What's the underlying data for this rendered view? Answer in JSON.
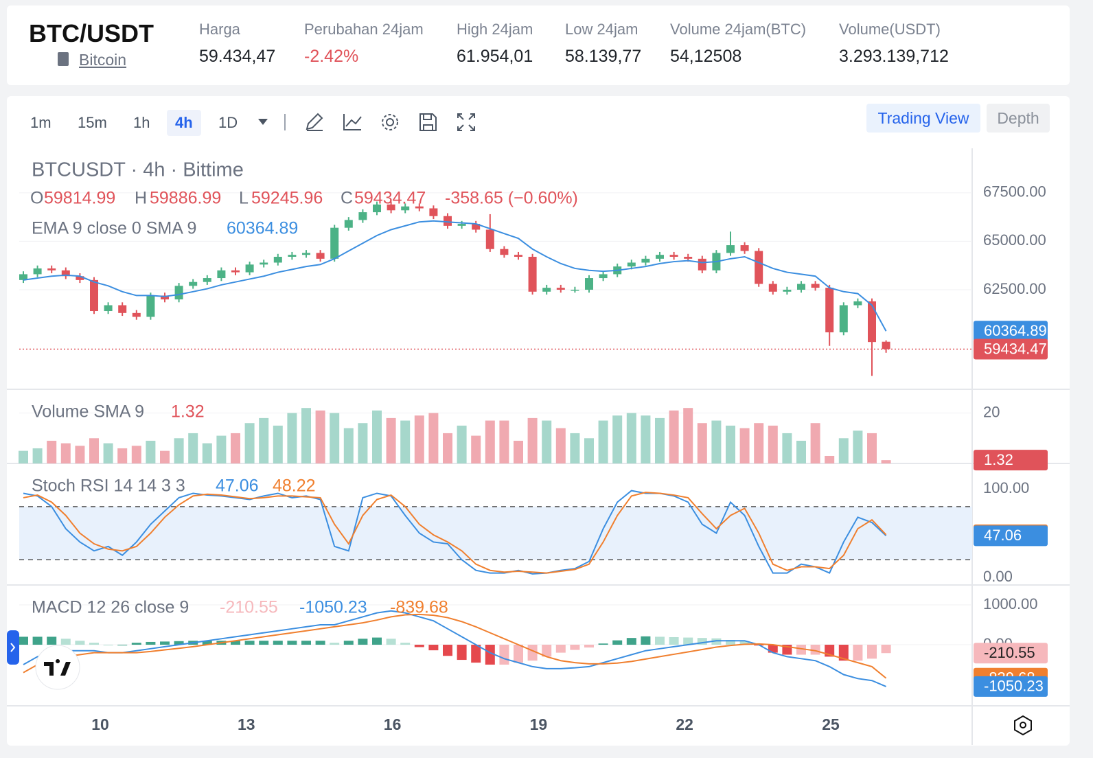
{
  "header": {
    "pair": "BTC/USDT",
    "asset_link": "Bitcoin",
    "stats": [
      {
        "label": "Harga",
        "value": "59.434,47"
      },
      {
        "label": "Perubahan 24jam",
        "value": "-2.42%"
      },
      {
        "label": "High 24jam",
        "value": "61.954,01"
      },
      {
        "label": "Low 24jam",
        "value": "58.139,77"
      },
      {
        "label": "Volume 24jam(BTC)",
        "value": "54,12508"
      },
      {
        "label": "Volume(USDT)",
        "value": "3.293.139,712"
      }
    ]
  },
  "toolbar": {
    "intervals": [
      "1m",
      "15m",
      "1h",
      "4h",
      "1D"
    ],
    "active": "4h",
    "views": [
      "Trading View",
      "Depth"
    ]
  },
  "chart_data": [
    {
      "type": "candlestick",
      "title": "BTCUSDT · 4h · Bittime",
      "ohlc_letters": [
        "O",
        "H",
        "L",
        "C"
      ],
      "change_label": "-358.65 (−0.60%)",
      "ema_label": "EMA 9 close 0 SMA 9",
      "up_color": "#4cb286",
      "down_color": "#e0535a",
      "ema_color": "#3b8ee0",
      "ylim": [
        57360,
        69800
      ],
      "yticks": [
        {
          "value": 62500,
          "label": "62500.00"
        },
        {
          "value": 65000,
          "label": "65000.00"
        },
        {
          "value": 67500,
          "label": "67500.00"
        }
      ],
      "xticks": [
        "10",
        "13",
        "16",
        "19",
        "22",
        "25"
      ],
      "open": [
        63000,
        63300,
        63600,
        63500,
        63200,
        63000,
        61400,
        61700,
        61300,
        61100,
        62200,
        62000,
        62700,
        62900,
        63100,
        63500,
        63400,
        63800,
        63900,
        64200,
        64300,
        64400,
        64100,
        65700,
        66100,
        66500,
        66900,
        66600,
        66800,
        66700,
        66300,
        65800,
        65900,
        65600,
        64600,
        64300,
        64200,
        62400,
        62600,
        62500,
        62500,
        63100,
        63300,
        63700,
        63900,
        64100,
        64300,
        64200,
        64100,
        63500,
        64400,
        64800,
        64500,
        62800,
        62400,
        62500,
        62800,
        62600,
        60300,
        61700,
        61900,
        59814.99
      ],
      "high": [
        63450,
        63750,
        63750,
        63650,
        63350,
        63150,
        61850,
        61850,
        61450,
        62350,
        62350,
        62850,
        63050,
        63250,
        63650,
        63650,
        63950,
        64050,
        64350,
        64450,
        64550,
        64550,
        65850,
        66250,
        66650,
        67050,
        67050,
        66950,
        66950,
        66850,
        66450,
        66050,
        66050,
        66400,
        64750,
        64450,
        64350,
        62750,
        62750,
        62650,
        63250,
        63450,
        63850,
        64050,
        64250,
        64450,
        64450,
        64350,
        64250,
        64550,
        65500,
        64950,
        64650,
        62950,
        62650,
        62950,
        62950,
        62750,
        61850,
        62050,
        62050,
        59886.99
      ],
      "low": [
        62850,
        63150,
        63350,
        63050,
        62850,
        61250,
        61250,
        61150,
        60950,
        60950,
        61850,
        61850,
        62550,
        62750,
        62950,
        63250,
        63250,
        63650,
        63750,
        64050,
        64150,
        63950,
        63950,
        65550,
        65950,
        66350,
        66450,
        66450,
        66550,
        66150,
        65650,
        65650,
        65450,
        64450,
        64150,
        64050,
        62250,
        62250,
        62350,
        62350,
        62350,
        62950,
        63150,
        63550,
        63750,
        63950,
        64050,
        63950,
        63350,
        63350,
        64250,
        64350,
        62650,
        62250,
        62250,
        62350,
        62450,
        59600,
        60150,
        61550,
        58050,
        59245.96
      ],
      "close": [
        63300,
        63600,
        63500,
        63200,
        63000,
        61400,
        61700,
        61300,
        61100,
        62200,
        62000,
        62700,
        62900,
        63100,
        63500,
        63400,
        63800,
        63900,
        64200,
        64300,
        64400,
        64100,
        65700,
        66100,
        66500,
        66900,
        66600,
        66800,
        66700,
        66300,
        65800,
        65900,
        65600,
        64600,
        64300,
        64200,
        62400,
        62600,
        62500,
        62500,
        63100,
        63300,
        63700,
        63900,
        64100,
        64300,
        64200,
        64100,
        63500,
        64400,
        64800,
        64500,
        62800,
        62400,
        62500,
        62800,
        62600,
        60300,
        61700,
        61900,
        59800,
        59434.47
      ],
      "ema": [
        63000,
        63100,
        63200,
        63250,
        63200,
        62900,
        62700,
        62400,
        62200,
        62200,
        62150,
        62250,
        62400,
        62550,
        62750,
        62900,
        63050,
        63200,
        63400,
        63550,
        63700,
        63800,
        64100,
        64500,
        64900,
        65300,
        65600,
        65800,
        66000,
        66050,
        66000,
        65950,
        65900,
        65650,
        65400,
        65150,
        64600,
        64200,
        63850,
        63600,
        63500,
        63450,
        63500,
        63600,
        63700,
        63850,
        63950,
        64000,
        63900,
        63950,
        64100,
        64200,
        63900,
        63600,
        63400,
        63300,
        63200,
        62600,
        62400,
        62300,
        61700,
        60364.89
      ]
    },
    {
      "type": "bar",
      "title": "Volume SMA 9",
      "up_color": "#a6d7cb",
      "down_color": "#f0a9b0",
      "ylim": [
        0,
        29.4
      ],
      "yticks": [
        20
      ],
      "values": [
        5,
        6,
        9,
        8,
        7,
        10,
        8,
        6,
        7,
        9,
        5,
        10,
        12,
        8,
        11,
        12,
        16,
        18,
        15,
        20,
        22,
        21,
        20,
        14,
        16,
        21,
        18,
        17,
        19,
        20,
        12,
        15,
        11,
        17,
        17,
        9,
        18,
        17,
        14,
        12,
        10,
        17,
        19,
        20,
        19,
        18,
        21,
        22,
        16,
        17,
        15,
        14,
        16,
        15,
        12,
        9,
        16,
        3,
        10,
        13,
        12,
        1.32
      ]
    },
    {
      "type": "line",
      "title": "Stoch RSI 14 14 3 3",
      "k_color": "#3b8ee0",
      "d_color": "#f07f2e",
      "band_color": "#e8f1fc",
      "bands": [
        20,
        80
      ],
      "ylim": [
        -8.5,
        128.7
      ],
      "yticks": [
        {
          "value": 0,
          "label": "0.00"
        },
        {
          "value": 100,
          "label": "100.00"
        }
      ],
      "k": [
        95,
        92,
        80,
        55,
        40,
        30,
        35,
        25,
        40,
        60,
        75,
        90,
        95,
        93,
        92,
        90,
        88,
        92,
        95,
        90,
        92,
        88,
        35,
        30,
        90,
        95,
        92,
        70,
        50,
        40,
        38,
        20,
        8,
        5,
        5,
        8,
        4,
        5,
        8,
        10,
        18,
        55,
        85,
        98,
        95,
        95,
        92,
        85,
        60,
        50,
        85,
        70,
        35,
        5,
        5,
        15,
        12,
        5,
        40,
        68,
        62,
        47.06
      ],
      "d": [
        90,
        93,
        85,
        70,
        50,
        38,
        32,
        30,
        35,
        50,
        68,
        82,
        92,
        94,
        93,
        91,
        89,
        90,
        92,
        92,
        91,
        90,
        60,
        38,
        70,
        88,
        93,
        80,
        60,
        48,
        40,
        30,
        15,
        8,
        6,
        7,
        6,
        5,
        7,
        9,
        15,
        40,
        70,
        92,
        96,
        95,
        93,
        90,
        72,
        55,
        70,
        78,
        50,
        15,
        8,
        12,
        12,
        10,
        25,
        55,
        65,
        48.22
      ]
    },
    {
      "type": "macd",
      "title": "MACD 12 26 close 9",
      "macd_color": "#3b8ee0",
      "signal_color": "#f07f2e",
      "hist_colors": [
        "#3fa38a",
        "#b6e0d4",
        "#e5484d",
        "#f6b8bc"
      ],
      "ylim": [
        -1534,
        1500
      ],
      "yticks": [
        {
          "value": 0,
          "label": "0.00"
        },
        {
          "value": 1000,
          "label": "1000.00"
        }
      ],
      "hist": [
        200,
        200,
        200,
        150,
        100,
        50,
        0,
        0,
        50,
        70,
        80,
        90,
        100,
        100,
        100,
        100,
        100,
        100,
        100,
        100,
        100,
        100,
        50,
        100,
        150,
        180,
        150,
        50,
        -60,
        -140,
        -280,
        -380,
        -450,
        -500,
        -500,
        -450,
        -400,
        -300,
        -200,
        -130,
        -70,
        30,
        110,
        170,
        210,
        200,
        190,
        180,
        170,
        160,
        120,
        90,
        -20,
        -200,
        -250,
        -250,
        -250,
        -300,
        -400,
        -400,
        -350,
        -210.55
      ],
      "macd": [
        -500,
        -300,
        -200,
        -150,
        -150,
        -150,
        -200,
        -200,
        -150,
        -100,
        -50,
        0,
        50,
        100,
        150,
        200,
        250,
        300,
        350,
        400,
        450,
        500,
        500,
        600,
        700,
        800,
        850,
        800,
        700,
        600,
        400,
        200,
        0,
        -200,
        -350,
        -450,
        -550,
        -600,
        -600,
        -580,
        -550,
        -450,
        -350,
        -250,
        -150,
        -100,
        -50,
        0,
        50,
        100,
        100,
        100,
        0,
        -200,
        -300,
        -350,
        -400,
        -550,
        -750,
        -850,
        -900,
        -1050.23
      ],
      "signal": [
        -700,
        -500,
        -400,
        -300,
        -250,
        -200,
        -200,
        -200,
        -200,
        -170,
        -130,
        -90,
        -50,
        0,
        50,
        100,
        150,
        200,
        250,
        300,
        350,
        400,
        450,
        500,
        550,
        620,
        700,
        750,
        760,
        740,
        680,
        580,
        450,
        300,
        150,
        0,
        -150,
        -300,
        -400,
        -450,
        -480,
        -480,
        -460,
        -420,
        -360,
        -300,
        -240,
        -180,
        -120,
        -60,
        -20,
        10,
        20,
        0,
        -50,
        -100,
        -150,
        -250,
        -350,
        -450,
        -550,
        -839.68
      ]
    }
  ]
}
